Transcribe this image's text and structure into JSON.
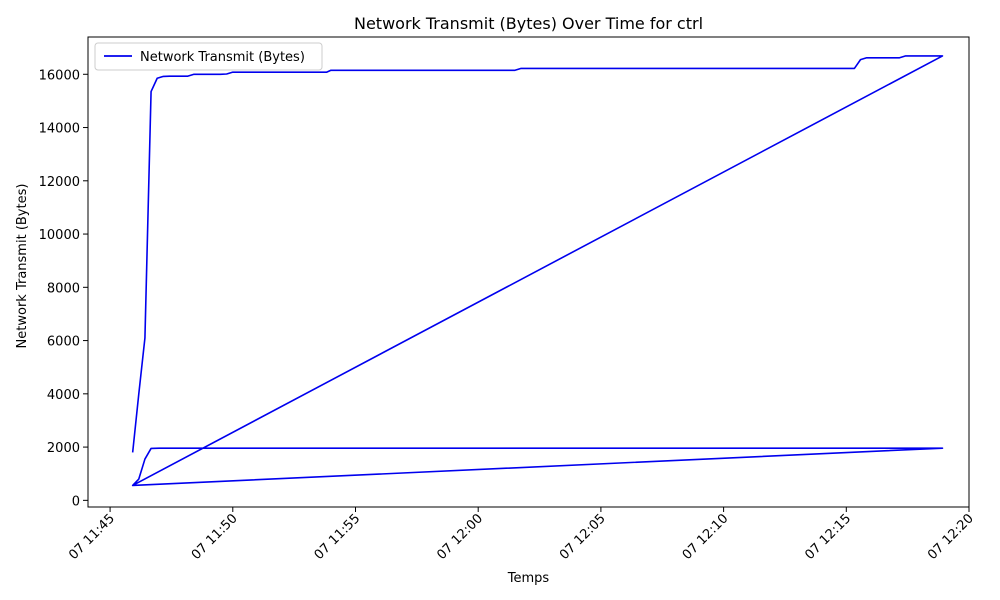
{
  "chart_data": {
    "type": "line",
    "title": "Network Transmit (Bytes) Over Time for ctrl",
    "xlabel": "Temps",
    "ylabel": "Network Transmit (Bytes)",
    "x_unit": "minutes after 11:45",
    "xlim": [
      -0.9,
      35.0
    ],
    "ylim": [
      -250,
      17400
    ],
    "x_ticks": [
      {
        "value": 0,
        "label": "07 11:45"
      },
      {
        "value": 5,
        "label": "07 11:50"
      },
      {
        "value": 10,
        "label": "07 11:55"
      },
      {
        "value": 15,
        "label": "07 12:00"
      },
      {
        "value": 20,
        "label": "07 12:05"
      },
      {
        "value": 25,
        "label": "07 12:10"
      },
      {
        "value": 30,
        "label": "07 12:15"
      },
      {
        "value": 35,
        "label": "07 12:20"
      }
    ],
    "y_ticks": [
      {
        "value": 0,
        "label": "0"
      },
      {
        "value": 2000,
        "label": "2000"
      },
      {
        "value": 4000,
        "label": "4000"
      },
      {
        "value": 6000,
        "label": "6000"
      },
      {
        "value": 8000,
        "label": "8000"
      },
      {
        "value": 10000,
        "label": "10000"
      },
      {
        "value": 12000,
        "label": "12000"
      },
      {
        "value": 14000,
        "label": "14000"
      },
      {
        "value": 16000,
        "label": "16000"
      }
    ],
    "grid": false,
    "legend": {
      "placement": "top-left"
    },
    "series": [
      {
        "name": "Network Transmit (Bytes)",
        "color": "#0000ee",
        "points": [
          [
            0.92,
            1800
          ],
          [
            1.17,
            4000
          ],
          [
            1.42,
            6100
          ],
          [
            1.67,
            15350
          ],
          [
            1.92,
            15850
          ],
          [
            2.17,
            15920
          ],
          [
            2.42,
            15930
          ],
          [
            3.0,
            15930
          ],
          [
            3.17,
            15930
          ],
          [
            3.42,
            16000
          ],
          [
            4.0,
            16000
          ],
          [
            4.5,
            16000
          ],
          [
            4.75,
            16010
          ],
          [
            5.0,
            16080
          ],
          [
            6.0,
            16080
          ],
          [
            7.0,
            16080
          ],
          [
            8.5,
            16080
          ],
          [
            8.83,
            16080
          ],
          [
            9.0,
            16150
          ],
          [
            10.0,
            16150
          ],
          [
            12.0,
            16150
          ],
          [
            14.0,
            16150
          ],
          [
            16.0,
            16150
          ],
          [
            16.5,
            16150
          ],
          [
            16.75,
            16220
          ],
          [
            18.0,
            16220
          ],
          [
            22.0,
            16220
          ],
          [
            26.0,
            16220
          ],
          [
            30.0,
            16220
          ],
          [
            30.33,
            16220
          ],
          [
            30.58,
            16550
          ],
          [
            30.83,
            16620
          ],
          [
            31.5,
            16620
          ],
          [
            32.0,
            16620
          ],
          [
            32.17,
            16620
          ],
          [
            32.42,
            16690
          ],
          [
            33.0,
            16690
          ],
          [
            33.5,
            16690
          ],
          [
            33.92,
            16690
          ],
          [
            0.92,
            560
          ],
          [
            1.17,
            800
          ],
          [
            1.42,
            1550
          ],
          [
            1.67,
            1950
          ],
          [
            2.0,
            1960
          ],
          [
            5.0,
            1960
          ],
          [
            10.0,
            1960
          ],
          [
            15.0,
            1960
          ],
          [
            20.0,
            1960
          ],
          [
            25.0,
            1960
          ],
          [
            30.0,
            1960
          ],
          [
            33.92,
            1960
          ],
          [
            0.92,
            560
          ],
          [
            33.92,
            16690
          ]
        ]
      }
    ]
  }
}
